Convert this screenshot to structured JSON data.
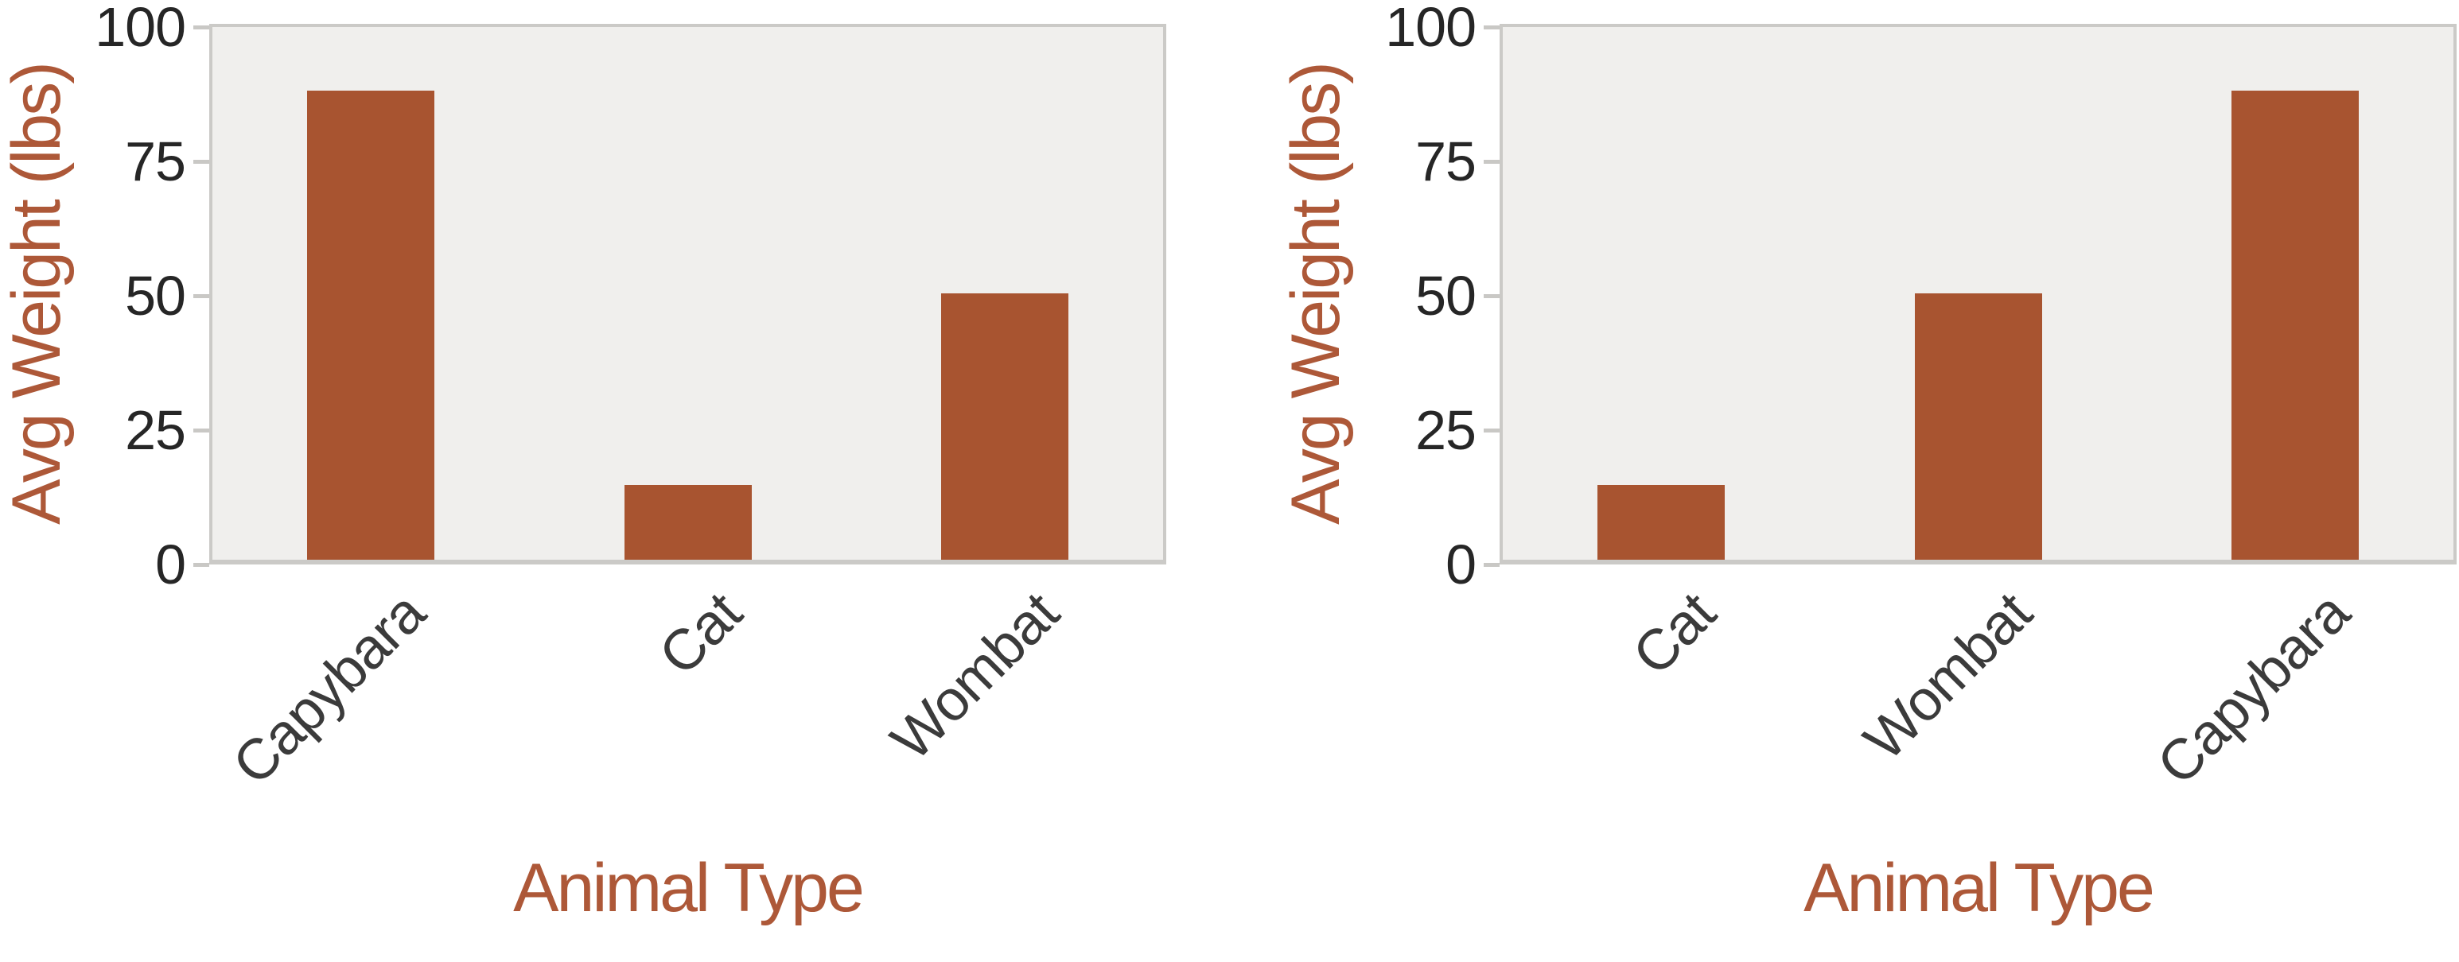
{
  "chart_data": [
    {
      "type": "bar",
      "categories": [
        "Capybara",
        "Cat",
        "Wombat"
      ],
      "values": [
        88,
        14,
        50
      ],
      "xlabel": "Animal Type",
      "ylabel": "Avg Weight (lbs)",
      "ylim": [
        0,
        100
      ],
      "yticks": [
        0,
        25,
        50,
        75,
        100
      ],
      "grid": false,
      "legend": false
    },
    {
      "type": "bar",
      "categories": [
        "Cat",
        "Wombat",
        "Capybara"
      ],
      "values": [
        14,
        50,
        88
      ],
      "xlabel": "Animal Type",
      "ylabel": "Avg Weight (lbs)",
      "ylim": [
        0,
        100
      ],
      "yticks": [
        0,
        25,
        50,
        75,
        100
      ],
      "grid": false,
      "legend": false
    }
  ],
  "colors": {
    "bar": "#a85430",
    "axis_title": "#ad5838",
    "tick_label": "#262626",
    "category_label": "#3b3b3b",
    "plot_bg": "#f0efed",
    "plot_border": "#cbcac7",
    "tick_mark": "#c9c8c5",
    "background": "#ffffff"
  }
}
